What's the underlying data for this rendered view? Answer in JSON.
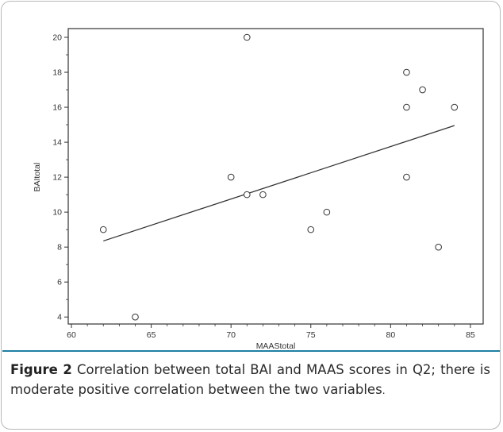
{
  "caption": {
    "label": "Figure 2",
    "text": " Correlation between total BAI and MAAS scores in Q2; there is moderate positive correlation between the two variables",
    "end": "."
  },
  "chart_data": {
    "type": "scatter",
    "title": "",
    "xlabel": "MAAStotal",
    "ylabel": "BAItotal",
    "xlim": [
      59.8,
      85.8
    ],
    "ylim": [
      3.6,
      20.5
    ],
    "x_ticks": [
      60,
      65,
      70,
      75,
      80,
      85
    ],
    "y_ticks": [
      4,
      6,
      8,
      10,
      12,
      14,
      16,
      18,
      20
    ],
    "grid": false,
    "marker": "open-circle",
    "points": [
      {
        "x": 62,
        "y": 9
      },
      {
        "x": 64,
        "y": 4
      },
      {
        "x": 70,
        "y": 12
      },
      {
        "x": 71,
        "y": 11
      },
      {
        "x": 71,
        "y": 20
      },
      {
        "x": 72,
        "y": 11
      },
      {
        "x": 75,
        "y": 9
      },
      {
        "x": 76,
        "y": 10
      },
      {
        "x": 81,
        "y": 12
      },
      {
        "x": 81,
        "y": 16
      },
      {
        "x": 81,
        "y": 18
      },
      {
        "x": 82,
        "y": 17
      },
      {
        "x": 83,
        "y": 8
      },
      {
        "x": 84,
        "y": 16
      }
    ],
    "fit_line": {
      "x": [
        62,
        84
      ],
      "y": [
        8.35,
        14.95
      ]
    },
    "colors": {
      "axis": "#333333",
      "marker": "#333333",
      "fit_line": "#333333"
    }
  }
}
